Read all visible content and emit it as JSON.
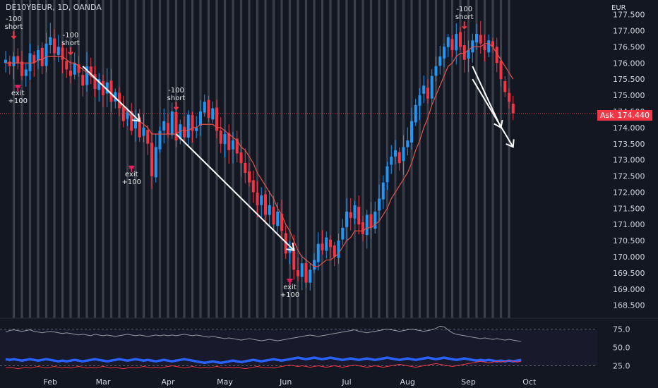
{
  "header": {
    "title": "DE10YBEUR, 1D, OANDA",
    "currency": "EUR"
  },
  "price_tag": {
    "label": "Ask",
    "value": "174.440"
  },
  "colors": {
    "up": "#2196f3",
    "down": "#f23645",
    "neutral": "#9598a1",
    "ma": "#e5534b",
    "bg": "#131722",
    "stripe": "#5d606b"
  },
  "chart_data": {
    "type": "candlestick",
    "main": {
      "ylim": [
        168.1,
        177.95
      ],
      "yticks": [
        "168.500",
        "169.000",
        "169.500",
        "170.000",
        "170.500",
        "171.000",
        "171.500",
        "172.000",
        "172.500",
        "173.000",
        "173.500",
        "174.000",
        "174.500",
        "175.000",
        "175.500",
        "176.000",
        "176.500",
        "177.000",
        "177.500"
      ],
      "current_price": 174.44,
      "closes": [
        176.1,
        175.9,
        176.2,
        176.0,
        175.6,
        175.8,
        176.3,
        176.0,
        176.4,
        175.9,
        176.6,
        176.8,
        176.3,
        176.5,
        176.1,
        175.8,
        175.6,
        176.0,
        175.7,
        175.3,
        175.9,
        175.6,
        175.2,
        175.5,
        175.0,
        175.4,
        174.8,
        175.1,
        174.6,
        174.2,
        174.5,
        173.9,
        174.3,
        173.7,
        174.0,
        173.5,
        172.5,
        173.4,
        173.9,
        174.2,
        173.8,
        174.5,
        173.6,
        174.1,
        173.7,
        174.4,
        173.9,
        174.0,
        174.5,
        174.8,
        174.3,
        174.6,
        173.9,
        173.5,
        173.8,
        173.3,
        173.6,
        173.2,
        172.9,
        172.6,
        172.3,
        172.0,
        171.6,
        171.9,
        171.3,
        171.6,
        171.0,
        171.4,
        170.8,
        170.1,
        170.3,
        169.6,
        169.4,
        169.8,
        169.2,
        169.6,
        169.9,
        170.4,
        170.2,
        170.6,
        170.3,
        170.0,
        170.5,
        170.9,
        171.4,
        171.2,
        171.6,
        171.0,
        170.7,
        171.3,
        170.9,
        171.4,
        171.8,
        172.3,
        172.8,
        173.1,
        173.3,
        172.9,
        173.4,
        173.6,
        174.2,
        174.7,
        175.0,
        175.3,
        174.9,
        175.6,
        175.9,
        176.2,
        176.5,
        176.8,
        176.4,
        176.9,
        176.5,
        176.1,
        176.4,
        176.7,
        176.9,
        176.6,
        176.4,
        176.7,
        176.5,
        176.0,
        175.5,
        175.1,
        174.8,
        174.44
      ],
      "ma_line": [
        176.0,
        176.0,
        176.0,
        176.0,
        176.0,
        176.0,
        176.0,
        176.0,
        176.1,
        176.1,
        176.2,
        176.2,
        176.2,
        176.2,
        176.2,
        176.1,
        176.0,
        176.0,
        175.9,
        175.8,
        175.7,
        175.6,
        175.5,
        175.4,
        175.3,
        175.2,
        175.0,
        174.9,
        174.8,
        174.6,
        174.5,
        174.3,
        174.3,
        174.2,
        174.1,
        174.0,
        173.8,
        173.8,
        173.8,
        173.8,
        173.8,
        173.8,
        173.8,
        173.9,
        173.9,
        173.9,
        174.0,
        174.0,
        174.1,
        174.1,
        174.1,
        174.1,
        174.0,
        174.0,
        173.9,
        173.8,
        173.7,
        173.6,
        173.4,
        173.3,
        173.1,
        172.9,
        172.6,
        172.4,
        172.2,
        172.0,
        171.8,
        171.5,
        171.3,
        171.0,
        170.8,
        170.5,
        170.2,
        170.0,
        169.9,
        169.8,
        169.7,
        169.7,
        169.8,
        169.9,
        169.9,
        170.0,
        170.1,
        170.3,
        170.5,
        170.6,
        170.8,
        170.8,
        170.8,
        170.9,
        170.9,
        171.0,
        171.1,
        171.3,
        171.5,
        171.8,
        172.0,
        172.2,
        172.4,
        172.6,
        172.9,
        173.3,
        173.6,
        174.0,
        174.3,
        174.7,
        175.0,
        175.3,
        175.6,
        175.9,
        176.0,
        176.2,
        176.3,
        176.3,
        176.4,
        176.5,
        176.5,
        176.5,
        176.6,
        176.6,
        176.5,
        176.3,
        176.1,
        175.9,
        175.7,
        175.5
      ],
      "xticks": [
        {
          "label": "Feb",
          "index": 11
        },
        {
          "label": "Mar",
          "index": 24
        },
        {
          "label": "Apr",
          "index": 40
        },
        {
          "label": "May",
          "index": 54
        },
        {
          "label": "Jun",
          "index": 69
        },
        {
          "label": "Jul",
          "index": 84
        },
        {
          "label": "Aug",
          "index": 99
        },
        {
          "label": "Sep",
          "index": 114
        },
        {
          "label": "Oct",
          "index": 129
        }
      ],
      "trend_lines": [
        {
          "x1": 19,
          "y1": 175.9,
          "x2": 33,
          "y2": 174.2
        },
        {
          "x1": 42,
          "y1": 173.8,
          "x2": 71,
          "y2": 170.2
        },
        {
          "x1": 115,
          "y1": 175.9,
          "x2": 122,
          "y2": 174.0
        },
        {
          "x1": 115,
          "y1": 175.5,
          "x2": 125,
          "y2": 173.4
        }
      ],
      "annotations": [
        {
          "text": [
            "-100",
            "short"
          ],
          "index": 2,
          "price": 176.9
        },
        {
          "text": [
            "exit",
            "+100"
          ],
          "index": 3,
          "price": 175.3
        },
        {
          "text": [
            "-100",
            "short"
          ],
          "index": 16,
          "price": 176.4
        },
        {
          "text": [
            "exit",
            "+100"
          ],
          "index": 31,
          "price": 172.8
        },
        {
          "text": [
            "-100",
            "short"
          ],
          "index": 42,
          "price": 174.7
        },
        {
          "text": [
            "exit",
            "+100"
          ],
          "index": 70,
          "price": 169.3
        },
        {
          "text": [
            "-100",
            "short"
          ],
          "index": 113,
          "price": 177.2
        }
      ]
    },
    "oscillator": {
      "ylim": [
        12,
        88
      ],
      "yticks": [
        "25.0",
        "50.0",
        "75.0"
      ],
      "series": [
        {
          "values": [
            71,
            73,
            74,
            73,
            72,
            73,
            74,
            72,
            71,
            70,
            71,
            72,
            71,
            70,
            69,
            70,
            69,
            68,
            67,
            68,
            67,
            66,
            68,
            67,
            66,
            67,
            66,
            65,
            66,
            67,
            68,
            67,
            66,
            67,
            66,
            65,
            66,
            67,
            66,
            67,
            66,
            67,
            66,
            67,
            68,
            67,
            66,
            67,
            66,
            65,
            64,
            65,
            64,
            63,
            62,
            63,
            62,
            61,
            60,
            61,
            62,
            61,
            60,
            59,
            60,
            61,
            60,
            59,
            60,
            61,
            62,
            63,
            64,
            65,
            66,
            67,
            66,
            65,
            66,
            67,
            68,
            69,
            70,
            71,
            72,
            73,
            74,
            72,
            71,
            70,
            71,
            72,
            73,
            74,
            75,
            74,
            73,
            72,
            73,
            74,
            75,
            74,
            73,
            72,
            73,
            74,
            76,
            79,
            78,
            74,
            70,
            68,
            67,
            66,
            65,
            64,
            63,
            62,
            63,
            62,
            61,
            62,
            61,
            60,
            61,
            60,
            59,
            58
          ],
          "color": "#9598a1",
          "width": 1
        },
        {
          "values": [
            34,
            33,
            34,
            33,
            32,
            33,
            34,
            33,
            32,
            33,
            34,
            33,
            32,
            31,
            32,
            31,
            32,
            33,
            32,
            31,
            32,
            33,
            34,
            33,
            32,
            31,
            32,
            33,
            34,
            33,
            32,
            33,
            34,
            33,
            32,
            33,
            32,
            31,
            32,
            33,
            32,
            31,
            32,
            33,
            34,
            33,
            32,
            31,
            30,
            29,
            30,
            31,
            30,
            29,
            30,
            31,
            32,
            31,
            30,
            31,
            32,
            33,
            32,
            31,
            32,
            33,
            34,
            33,
            32,
            33,
            34,
            35,
            36,
            35,
            34,
            35,
            36,
            35,
            34,
            35,
            36,
            35,
            34,
            33,
            34,
            35,
            34,
            33,
            34,
            35,
            34,
            33,
            34,
            35,
            36,
            35,
            34,
            33,
            34,
            35,
            34,
            33,
            34,
            35,
            36,
            35,
            34,
            35,
            36,
            35,
            34,
            33,
            34,
            35,
            34,
            33,
            32,
            33,
            32,
            33,
            32,
            31,
            32,
            31,
            32,
            31,
            32,
            33
          ],
          "color": "#2962ff",
          "width": 3.5
        },
        {
          "values": [
            22,
            23,
            22,
            21,
            22,
            23,
            22,
            23,
            24,
            23,
            22,
            23,
            24,
            23,
            22,
            23,
            22,
            23,
            24,
            23,
            22,
            23,
            22,
            23,
            24,
            23,
            22,
            23,
            22,
            21,
            22,
            23,
            22,
            23,
            24,
            23,
            22,
            23,
            22,
            23,
            24,
            25,
            24,
            23,
            22,
            23,
            24,
            23,
            22,
            23,
            22,
            23,
            24,
            23,
            22,
            23,
            22,
            23,
            22,
            21,
            22,
            23,
            24,
            23,
            22,
            23,
            22,
            23,
            24,
            25,
            26,
            25,
            24,
            25,
            24,
            23,
            24,
            25,
            24,
            23,
            24,
            25,
            24,
            23,
            24,
            25,
            26,
            25,
            24,
            23,
            24,
            25,
            24,
            23,
            24,
            25,
            26,
            27,
            26,
            25,
            24,
            23,
            24,
            25,
            26,
            27,
            28,
            27,
            26,
            25,
            24,
            25,
            26,
            27,
            28,
            29,
            30,
            31,
            30,
            29,
            30,
            31,
            30,
            31,
            32,
            31,
            30,
            31
          ],
          "color": "#f23645",
          "width": 1
        }
      ]
    }
  }
}
